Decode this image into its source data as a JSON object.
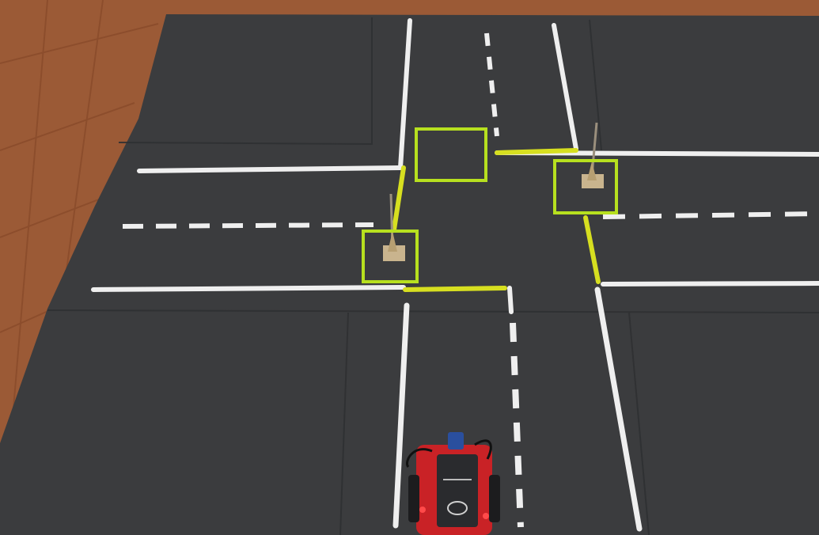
{
  "scene": {
    "floor_color": "#9a5630",
    "mat_color": "#3a3b3d",
    "line_color": "#f2f2f2",
    "stop_line_color": "#d8e21c",
    "highlight_color": "#b7e01f",
    "robot_color": "#d6282b"
  },
  "detections": [
    {
      "name": "detection-box-intersection-center",
      "label": ""
    },
    {
      "name": "detection-box-sign-right",
      "label": ""
    },
    {
      "name": "detection-box-sign-left",
      "label": ""
    }
  ]
}
